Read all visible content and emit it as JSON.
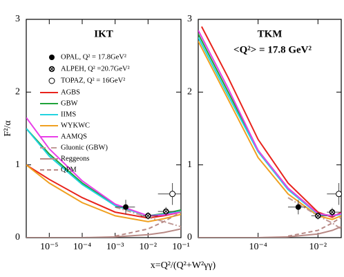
{
  "xlabel": "x=Q²/(Q²+W²γγ)",
  "ylabel": "F²/α",
  "chart_data": [
    {
      "type": "line",
      "title": "IKT",
      "xscale": "log",
      "legend": true,
      "xlim": [
        2e-06,
        0.1
      ],
      "ylim": [
        0,
        3
      ],
      "xticks": [
        {
          "value": 1e-05,
          "label": "10⁻⁵"
        },
        {
          "value": 0.0001,
          "label": "10⁻⁴"
        },
        {
          "value": 0.001,
          "label": "10⁻³"
        },
        {
          "value": 0.01,
          "label": "10⁻²"
        },
        {
          "value": 0.1,
          "label": "10⁻¹"
        }
      ],
      "yticks": [
        0,
        1,
        2,
        3
      ],
      "points": [
        {
          "name": "OPAL,  Q² = 17.8GeV²",
          "marker": "filled",
          "x": [
            0.0021
          ],
          "values": [
            0.42
          ],
          "yerr": [
            0.1
          ],
          "xlow": [
            0.001
          ],
          "xhigh": [
            0.004
          ]
        },
        {
          "name": "ALPEH,  Q² =20.7GeV²",
          "marker": "crossed",
          "x": [
            0.01,
            0.035
          ],
          "values": [
            0.3,
            0.36
          ],
          "yerr": [
            0.05,
            0.06
          ],
          "xlow": [
            0.006,
            0.02
          ],
          "xhigh": [
            0.02,
            0.07
          ]
        },
        {
          "name": "TOPAZ,  Q² = 16GeV²",
          "marker": "open",
          "x": [
            0.055
          ],
          "values": [
            0.6
          ],
          "yerr": [
            0.15
          ],
          "xlow": [
            0.02
          ],
          "xhigh": [
            0.1
          ]
        }
      ],
      "series": [
        {
          "name": "AGBS",
          "color": "#e8231c",
          "style": "solid",
          "x": [
            2e-06,
            1e-05,
            0.0001,
            0.001,
            0.01,
            0.03,
            0.1
          ],
          "values": [
            1.0,
            0.8,
            0.55,
            0.35,
            0.27,
            0.3,
            0.35
          ]
        },
        {
          "name": "GBW",
          "color": "#1fa339",
          "style": "solid",
          "x": [
            2e-06,
            1e-05,
            0.0001,
            0.001,
            0.01,
            0.03,
            0.1
          ],
          "values": [
            1.5,
            1.15,
            0.75,
            0.45,
            0.3,
            0.33,
            0.38
          ]
        },
        {
          "name": "IIMS",
          "color": "#22d3e0",
          "style": "solid",
          "x": [
            2e-06,
            1e-05,
            0.0001,
            0.001,
            0.01,
            0.03,
            0.1
          ],
          "values": [
            1.5,
            1.12,
            0.73,
            0.44,
            0.3,
            0.32,
            0.36
          ]
        },
        {
          "name": "WYKWC",
          "color": "#f0a020",
          "style": "solid",
          "x": [
            2e-06,
            1e-05,
            0.0001,
            0.001,
            0.01,
            0.03,
            0.1
          ],
          "values": [
            1.0,
            0.75,
            0.48,
            0.3,
            0.22,
            0.26,
            0.32
          ]
        },
        {
          "name": "AAMQS",
          "color": "#e83ee8",
          "style": "solid",
          "x": [
            2e-06,
            1e-05,
            0.0001,
            0.001,
            0.01,
            0.03,
            0.1
          ],
          "values": [
            1.65,
            1.22,
            0.78,
            0.46,
            0.3,
            0.31,
            0.35
          ]
        },
        {
          "name": "Gluonic (GBW)",
          "color": "#c09a96",
          "style": "dashdot",
          "x": [
            2e-06,
            1e-05,
            0.0001,
            0.001,
            0.01,
            0.03,
            0.1
          ],
          "values": [
            null,
            null,
            null,
            0.42,
            0.28,
            0.22,
            0.15
          ]
        },
        {
          "name": "Reggeons",
          "color": "#b88a86",
          "style": "solid",
          "x": [
            2e-06,
            1e-05,
            0.0001,
            0.001,
            0.01,
            0.03,
            0.1
          ],
          "values": [
            0,
            0,
            0,
            0.01,
            0.04,
            0.07,
            0.12
          ]
        },
        {
          "name": "QPM",
          "color": "#b88a86",
          "style": "dashed",
          "x": [
            2e-06,
            1e-05,
            0.0001,
            0.001,
            0.01,
            0.03,
            0.1
          ],
          "values": [
            null,
            null,
            null,
            0.02,
            0.12,
            0.22,
            0.35
          ]
        }
      ]
    },
    {
      "type": "line",
      "title": "TKM",
      "subtitle": "<Q²> = 17.8 GeV²",
      "xscale": "log",
      "legend": false,
      "xlim": [
        1e-06,
        0.06
      ],
      "ylim": [
        0,
        3
      ],
      "xticks": [
        {
          "value": 0.0001,
          "label": "10⁻⁴"
        },
        {
          "value": 0.01,
          "label": "10⁻²"
        }
      ],
      "yticks": [
        0,
        1,
        2,
        3
      ],
      "points": [
        {
          "marker": "filled",
          "x": [
            0.0022
          ],
          "values": [
            0.42
          ],
          "yerr": [
            0.1
          ],
          "xlow": [
            0.001
          ],
          "xhigh": [
            0.004
          ]
        },
        {
          "marker": "crossed",
          "x": [
            0.01,
            0.03
          ],
          "values": [
            0.3,
            0.35
          ],
          "yerr": [
            0.05,
            0.06
          ],
          "xlow": [
            0.006,
            0.02
          ],
          "xhigh": [
            0.02,
            0.06
          ]
        },
        {
          "marker": "open",
          "x": [
            0.05
          ],
          "values": [
            0.6
          ],
          "yerr": [
            0.15
          ],
          "xlow": [
            0.02
          ],
          "xhigh": [
            0.06
          ]
        }
      ],
      "series": [
        {
          "color": "#e8231c",
          "style": "solid",
          "x": [
            1.3e-06,
            1e-05,
            0.0001,
            0.001,
            0.01,
            0.03,
            0.06
          ],
          "values": [
            2.9,
            2.2,
            1.35,
            0.75,
            0.35,
            0.28,
            0.35
          ]
        },
        {
          "color": "#1fa339",
          "style": "solid",
          "x": [
            1e-06,
            1e-05,
            0.0001,
            0.001,
            0.01,
            0.03,
            0.06
          ],
          "values": [
            2.8,
            2.0,
            1.2,
            0.68,
            0.33,
            0.3,
            0.33
          ]
        },
        {
          "color": "#22d3e0",
          "style": "solid",
          "x": [
            1e-06,
            1e-05,
            0.0001,
            0.001,
            0.01,
            0.03,
            0.06
          ],
          "values": [
            2.75,
            1.95,
            1.18,
            0.66,
            0.32,
            0.3,
            0.32
          ]
        },
        {
          "color": "#f0a020",
          "style": "solid",
          "x": [
            1e-06,
            1e-05,
            0.0001,
            0.001,
            0.01,
            0.03,
            0.06
          ],
          "values": [
            2.7,
            1.9,
            1.1,
            0.6,
            0.3,
            0.25,
            0.3
          ]
        },
        {
          "color": "#e83ee8",
          "style": "solid",
          "x": [
            1e-06,
            1e-05,
            0.0001,
            0.001,
            0.01,
            0.03,
            0.06
          ],
          "values": [
            2.85,
            2.05,
            1.2,
            0.68,
            0.33,
            0.3,
            0.33
          ]
        },
        {
          "color": "#c09a96",
          "style": "dashdot",
          "x": [
            1e-06,
            1e-05,
            0.0001,
            0.001,
            0.01,
            0.03,
            0.06
          ],
          "values": [
            null,
            null,
            null,
            0.55,
            0.3,
            0.2,
            0.12
          ]
        },
        {
          "color": "#b88a86",
          "style": "solid",
          "x": [
            1e-06,
            1e-05,
            0.0001,
            0.001,
            0.01,
            0.03,
            0.06
          ],
          "values": [
            0,
            0,
            0,
            0.01,
            0.05,
            0.1,
            0.15
          ]
        },
        {
          "color": "#b88a86",
          "style": "dashed",
          "x": [
            1e-06,
            1e-05,
            0.0001,
            0.001,
            0.01,
            0.03,
            0.06
          ],
          "values": [
            null,
            null,
            null,
            0.02,
            0.1,
            0.2,
            0.28
          ]
        }
      ]
    }
  ]
}
